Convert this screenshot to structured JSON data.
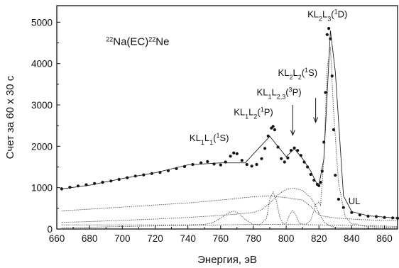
{
  "chart_data": {
    "type": "scatter",
    "title": "",
    "xlabel": "Энергия, эВ",
    "ylabel": "Счет за 60 x 30 с",
    "xlim": [
      660,
      868
    ],
    "ylim": [
      0,
      5400
    ],
    "x_ticks": [
      660,
      680,
      700,
      720,
      740,
      760,
      780,
      800,
      820,
      840,
      860
    ],
    "y_ticks": [
      0,
      1000,
      2000,
      3000,
      4000,
      5000
    ],
    "grid": false,
    "annotations": [
      {
        "text_parts": [
          [
            "22",
            "sup"
          ],
          [
            "Na(EC)",
            "n"
          ],
          [
            "22",
            "sup"
          ],
          [
            "Ne",
            "n"
          ]
        ],
        "x": 690,
        "y": 4450,
        "size": "big"
      },
      {
        "text_parts": [
          [
            "KL",
            "n"
          ],
          [
            "1",
            "sub"
          ],
          [
            "L",
            "n"
          ],
          [
            "1",
            "sub"
          ],
          [
            "(",
            "n"
          ],
          [
            "1",
            "sup"
          ],
          [
            "S)",
            "n"
          ]
        ],
        "x": 741,
        "y": 2130
      },
      {
        "text_parts": [
          [
            "KL",
            "n"
          ],
          [
            "1",
            "sub"
          ],
          [
            "L",
            "n"
          ],
          [
            "2",
            "sub"
          ],
          [
            "(",
            "n"
          ],
          [
            "1",
            "sup"
          ],
          [
            "P)",
            "n"
          ]
        ],
        "x": 768,
        "y": 2750
      },
      {
        "text_parts": [
          [
            "KL",
            "n"
          ],
          [
            "1",
            "sub"
          ],
          [
            "L",
            "n"
          ],
          [
            "2,3",
            "sub"
          ],
          [
            "(",
            "n"
          ],
          [
            "3",
            "sup"
          ],
          [
            "P)",
            "n"
          ]
        ],
        "x": 782,
        "y": 3230
      },
      {
        "text_parts": [
          [
            "KL",
            "n"
          ],
          [
            "2",
            "sub"
          ],
          [
            "L",
            "n"
          ],
          [
            "2",
            "sub"
          ],
          [
            "(",
            "n"
          ],
          [
            "1",
            "sup"
          ],
          [
            "S)",
            "n"
          ]
        ],
        "x": 795,
        "y": 3700
      },
      {
        "text_parts": [
          [
            "KL",
            "n"
          ],
          [
            "2",
            "sub"
          ],
          [
            "L",
            "n"
          ],
          [
            "3",
            "sub"
          ],
          [
            "(",
            "n"
          ],
          [
            "1",
            "sup"
          ],
          [
            "D)",
            "n"
          ]
        ],
        "x": 813,
        "y": 5120
      },
      {
        "text_parts": [
          [
            "UL",
            "n"
          ]
        ],
        "x": 838,
        "y": 600
      }
    ],
    "arrows": [
      {
        "x": 804,
        "y_from": 3000,
        "y_to": 2270
      },
      {
        "x": 818,
        "y_from": 3170,
        "y_to": 2580
      }
    ],
    "series": [
      {
        "style": "points",
        "x": [
          663,
          668,
          673,
          678,
          683,
          688,
          693,
          698,
          703,
          708,
          713,
          718,
          723,
          728,
          733,
          738,
          743,
          748,
          752,
          756,
          760,
          763,
          766,
          768,
          770,
          773,
          776,
          779,
          782,
          785,
          787,
          789,
          791,
          792,
          793,
          795,
          797,
          799,
          801,
          803,
          805,
          807,
          809,
          811,
          813,
          815,
          817,
          819,
          820,
          821,
          822,
          823,
          824,
          825,
          826,
          827,
          828,
          829,
          830,
          832,
          835,
          840,
          845,
          850,
          855,
          860,
          865,
          868
        ],
        "y": [
          970,
          1010,
          1040,
          1070,
          1100,
          1130,
          1160,
          1200,
          1240,
          1280,
          1310,
          1340,
          1370,
          1410,
          1460,
          1510,
          1560,
          1600,
          1630,
          1570,
          1550,
          1620,
          1760,
          1840,
          1820,
          1660,
          1560,
          1520,
          1560,
          1700,
          1950,
          2250,
          2440,
          2480,
          2400,
          1980,
          1700,
          1620,
          1720,
          1900,
          1960,
          1900,
          1780,
          1620,
          1500,
          1320,
          1180,
          1080,
          1050,
          1130,
          1400,
          2100,
          3300,
          4700,
          4850,
          4600,
          3700,
          2400,
          1300,
          720,
          520,
          400,
          340,
          310,
          300,
          280,
          270,
          260
        ]
      },
      {
        "style": "line",
        "x": [
          663,
          680,
          700,
          720,
          740,
          760,
          775,
          790,
          800,
          805,
          810,
          815,
          818,
          820,
          823,
          827,
          830,
          835,
          840,
          850,
          868
        ],
        "y": [
          970,
          1060,
          1220,
          1360,
          1550,
          1600,
          1600,
          2240,
          1750,
          1940,
          1700,
          1400,
          1150,
          1060,
          1700,
          4800,
          3800,
          800,
          420,
          320,
          260
        ]
      },
      {
        "style": "dotted",
        "x": [
          663,
          680,
          700,
          720,
          740,
          760,
          780,
          790,
          795,
          800,
          810,
          815,
          818,
          820,
          822,
          824,
          826,
          828,
          830,
          832,
          835,
          840,
          845,
          850,
          860,
          868
        ],
        "y": [
          440,
          480,
          530,
          580,
          630,
          700,
          780,
          800,
          780,
          760,
          700,
          550,
          420,
          350,
          320,
          300,
          290,
          280,
          270,
          260,
          250,
          240,
          230,
          220,
          210,
          200
        ]
      },
      {
        "style": "dotted",
        "x": [
          663,
          680,
          700,
          720,
          740,
          760,
          770,
          780,
          785,
          790,
          795,
          800,
          805,
          810,
          815,
          818,
          820,
          823,
          826,
          830,
          840,
          868
        ],
        "y": [
          160,
          180,
          210,
          240,
          280,
          330,
          360,
          400,
          470,
          620,
          830,
          960,
          990,
          930,
          760,
          560,
          380,
          180,
          80,
          40,
          20,
          10
        ]
      },
      {
        "style": "dotted",
        "x": [
          663,
          700,
          740,
          750,
          755,
          760,
          765,
          768,
          771,
          775,
          780,
          784,
          788,
          790,
          792,
          794,
          796,
          798,
          800,
          802,
          804,
          806,
          808,
          812,
          815,
          817,
          818,
          820,
          821,
          823,
          825,
          827,
          829,
          832,
          836,
          840,
          843,
          846,
          850,
          856,
          868
        ],
        "y": [
          100,
          100,
          100,
          110,
          150,
          260,
          400,
          430,
          380,
          230,
          110,
          100,
          260,
          720,
          900,
          700,
          300,
          120,
          140,
          330,
          450,
          330,
          140,
          110,
          210,
          450,
          600,
          650,
          560,
          1700,
          3900,
          4400,
          2800,
          1100,
          300,
          120,
          120,
          80,
          60,
          50,
          40
        ]
      },
      {
        "style": "dotted",
        "x": [
          663,
          700,
          740,
          760,
          780,
          800,
          820,
          840,
          860,
          868
        ],
        "y": [
          30,
          60,
          90,
          100,
          110,
          110,
          100,
          90,
          70,
          60
        ]
      }
    ]
  }
}
